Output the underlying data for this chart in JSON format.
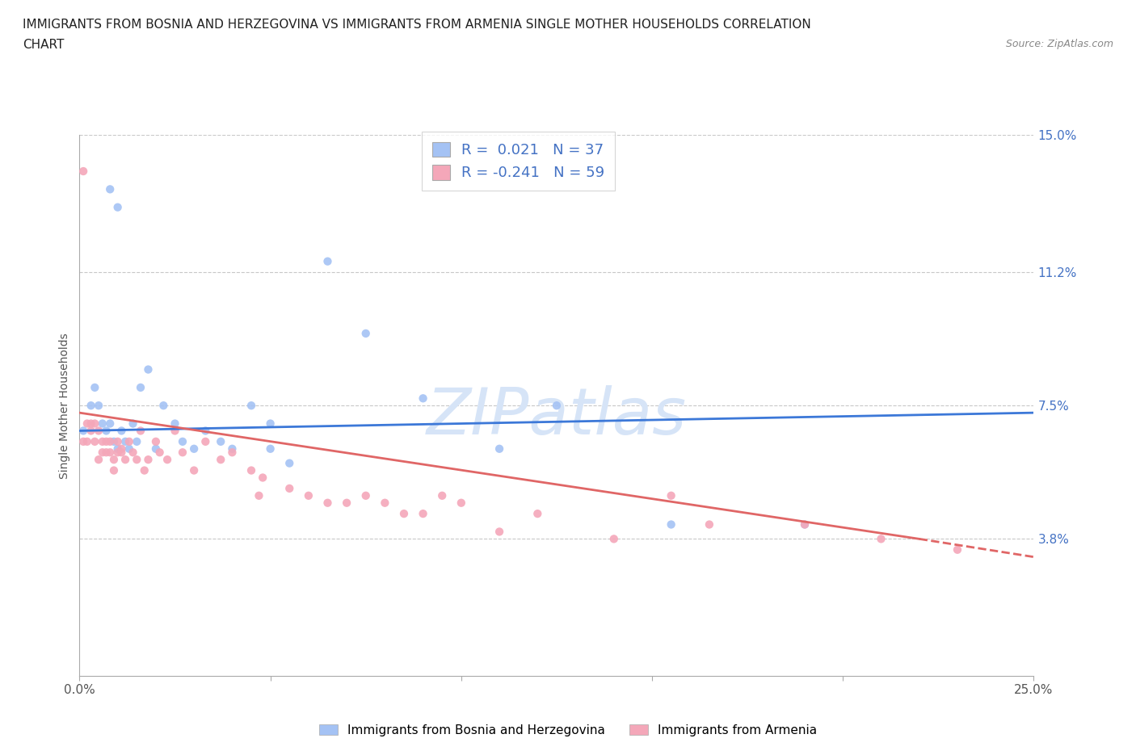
{
  "title_line1": "IMMIGRANTS FROM BOSNIA AND HERZEGOVINA VS IMMIGRANTS FROM ARMENIA SINGLE MOTHER HOUSEHOLDS CORRELATION",
  "title_line2": "CHART",
  "source": "Source: ZipAtlas.com",
  "ylabel": "Single Mother Households",
  "xlim": [
    0.0,
    0.25
  ],
  "ylim": [
    0.0,
    0.15
  ],
  "yticks": [
    0.038,
    0.075,
    0.112,
    0.15
  ],
  "ytick_labels": [
    "3.8%",
    "7.5%",
    "11.2%",
    "15.0%"
  ],
  "xticks": [
    0.0,
    0.05,
    0.1,
    0.15,
    0.2,
    0.25
  ],
  "xtick_labels": [
    "0.0%",
    "",
    "",
    "",
    "",
    "25.0%"
  ],
  "background_color": "#ffffff",
  "grid_color": "#c8c8c8",
  "blue_color": "#a4c2f4",
  "pink_color": "#f4a7b9",
  "blue_line_color": "#3c78d8",
  "pink_line_color": "#e06666",
  "watermark_color": "#d6e4f7",
  "R_blue": 0.021,
  "N_blue": 37,
  "R_pink": -0.241,
  "N_pink": 59,
  "blue_scatter_x": [
    0.001,
    0.003,
    0.004,
    0.005,
    0.006,
    0.007,
    0.008,
    0.009,
    0.01,
    0.011,
    0.012,
    0.013,
    0.014,
    0.015,
    0.016,
    0.018,
    0.02,
    0.022,
    0.025,
    0.027,
    0.03,
    0.033,
    0.037,
    0.04,
    0.045,
    0.05,
    0.055,
    0.065,
    0.075,
    0.09,
    0.11,
    0.125,
    0.155,
    0.19,
    0.05,
    0.008,
    0.01
  ],
  "blue_scatter_y": [
    0.068,
    0.075,
    0.08,
    0.075,
    0.07,
    0.068,
    0.07,
    0.065,
    0.063,
    0.068,
    0.065,
    0.063,
    0.07,
    0.065,
    0.08,
    0.085,
    0.063,
    0.075,
    0.07,
    0.065,
    0.063,
    0.068,
    0.065,
    0.063,
    0.075,
    0.063,
    0.059,
    0.115,
    0.095,
    0.077,
    0.063,
    0.075,
    0.042,
    0.042,
    0.07,
    0.135,
    0.13
  ],
  "pink_scatter_x": [
    0.001,
    0.001,
    0.002,
    0.002,
    0.003,
    0.003,
    0.004,
    0.004,
    0.005,
    0.005,
    0.006,
    0.006,
    0.007,
    0.007,
    0.008,
    0.008,
    0.009,
    0.009,
    0.01,
    0.01,
    0.011,
    0.011,
    0.012,
    0.013,
    0.014,
    0.015,
    0.016,
    0.017,
    0.018,
    0.02,
    0.021,
    0.023,
    0.025,
    0.027,
    0.03,
    0.033,
    0.037,
    0.04,
    0.045,
    0.047,
    0.048,
    0.055,
    0.06,
    0.065,
    0.07,
    0.075,
    0.08,
    0.085,
    0.09,
    0.095,
    0.1,
    0.11,
    0.12,
    0.14,
    0.155,
    0.165,
    0.19,
    0.21,
    0.23
  ],
  "pink_scatter_y": [
    0.14,
    0.065,
    0.065,
    0.07,
    0.068,
    0.07,
    0.065,
    0.07,
    0.068,
    0.06,
    0.065,
    0.062,
    0.062,
    0.065,
    0.062,
    0.065,
    0.06,
    0.057,
    0.062,
    0.065,
    0.063,
    0.062,
    0.06,
    0.065,
    0.062,
    0.06,
    0.068,
    0.057,
    0.06,
    0.065,
    0.062,
    0.06,
    0.068,
    0.062,
    0.057,
    0.065,
    0.06,
    0.062,
    0.057,
    0.05,
    0.055,
    0.052,
    0.05,
    0.048,
    0.048,
    0.05,
    0.048,
    0.045,
    0.045,
    0.05,
    0.048,
    0.04,
    0.045,
    0.038,
    0.05,
    0.042,
    0.042,
    0.038,
    0.035
  ],
  "blue_trend_x": [
    0.0,
    0.25
  ],
  "blue_trend_y_start": 0.068,
  "blue_trend_y_end": 0.073,
  "pink_trend_x_solid_start": 0.0,
  "pink_trend_x_solid_end": 0.22,
  "pink_trend_y_solid_start": 0.073,
  "pink_trend_y_solid_end": 0.038,
  "pink_trend_x_dash_start": 0.22,
  "pink_trend_x_dash_end": 0.25,
  "pink_trend_y_dash_start": 0.038,
  "pink_trend_y_dash_end": 0.033
}
